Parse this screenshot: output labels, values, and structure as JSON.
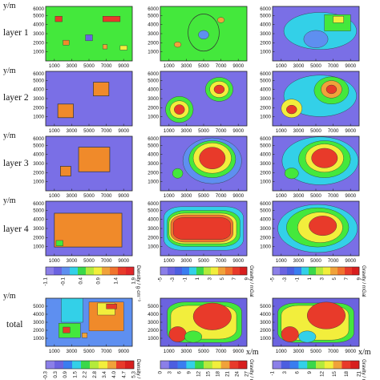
{
  "figure": {
    "y_axis_label": "y/m",
    "x_axis_label": "x/m",
    "rows": [
      {
        "label": "layer 1"
      },
      {
        "label": "layer 2"
      },
      {
        "label": "layer 3"
      },
      {
        "label": "layer 4"
      },
      {
        "label": "total"
      }
    ]
  },
  "chart_data": [
    {
      "type": "heatmap",
      "x_ticks": [
        1000,
        3000,
        5000,
        7000,
        9000
      ],
      "y_ticks": [
        1000,
        2000,
        3000,
        4000,
        5000,
        6000
      ],
      "xlim": [
        0,
        10000
      ],
      "ylim": [
        0,
        6000
      ]
    },
    {
      "type": "colorbar",
      "quantity": "Density / g·cm⁻³",
      "ticks": [
        "-1.1",
        "-0.1",
        "0.4",
        "0.9",
        "1.4",
        "1.9"
      ],
      "colors": [
        "#8b7fe8",
        "#6b63e0",
        "#5e8ff0",
        "#33d0e8",
        "#3ad84a",
        "#b4ea3c",
        "#f2ee3c",
        "#f0a23a",
        "#f0742e",
        "#e83a2a",
        "#e0262a"
      ]
    },
    {
      "type": "colorbar",
      "quantity": "Gravity / mGal",
      "ticks": [
        "-5",
        "-3",
        "-1",
        "1",
        "3",
        "5",
        "7",
        "9"
      ],
      "colors": [
        "#8b7fe8",
        "#6b63e0",
        "#4c5ee0",
        "#3a7df0",
        "#33d0e8",
        "#3ad84a",
        "#b4ea3c",
        "#f2ee3c",
        "#f0a23a",
        "#f0742e",
        "#e83a2a",
        "#d81e1e"
      ]
    },
    {
      "type": "colorbar",
      "quantity": "Gravity / mGal",
      "ticks": [
        "-5",
        "-3",
        "-1",
        "1",
        "3",
        "5",
        "7",
        "9"
      ],
      "colors": [
        "#8b7fe8",
        "#6b63e0",
        "#4c5ee0",
        "#3a7df0",
        "#33d0e8",
        "#3ad84a",
        "#b4ea3c",
        "#f2ee3c",
        "#f0a23a",
        "#f0742e",
        "#e83a2a",
        "#d81e1e"
      ]
    },
    {
      "type": "colorbar",
      "quantity": "Density / g·cm⁻³",
      "ticks": [
        "-0.3",
        "0.3",
        "0.9",
        "1.5",
        "2.2",
        "2.8",
        "3.4",
        "4.0",
        "4.7",
        "5.3"
      ],
      "colors": [
        "#8b7fe8",
        "#6b63e0",
        "#3a7df0",
        "#33d0e8",
        "#3ad84a",
        "#b4ea3c",
        "#f2ee3c",
        "#f0a23a",
        "#e83a2a",
        "#d81e1e"
      ]
    },
    {
      "type": "colorbar",
      "quantity": "Gravity / mGal",
      "ticks": [
        "0",
        "3",
        "6",
        "9",
        "12",
        "15",
        "18",
        "21",
        "24",
        "27"
      ],
      "colors": [
        "#8b7fe8",
        "#4c5ee0",
        "#3a7df0",
        "#33d0e8",
        "#3ad84a",
        "#b4ea3c",
        "#f2ee3c",
        "#f0a23a",
        "#e83a2a",
        "#d81e1e"
      ]
    },
    {
      "type": "colorbar",
      "quantity": "Gravity / mGal",
      "ticks": [
        "-1",
        "3",
        "6",
        "9",
        "12",
        "15",
        "18",
        "21"
      ],
      "colors": [
        "#8b7fe8",
        "#4c5ee0",
        "#3a7df0",
        "#33d0e8",
        "#3ad84a",
        "#b4ea3c",
        "#f2ee3c",
        "#f0a23a",
        "#e83a2a",
        "#d81e1e"
      ]
    }
  ]
}
